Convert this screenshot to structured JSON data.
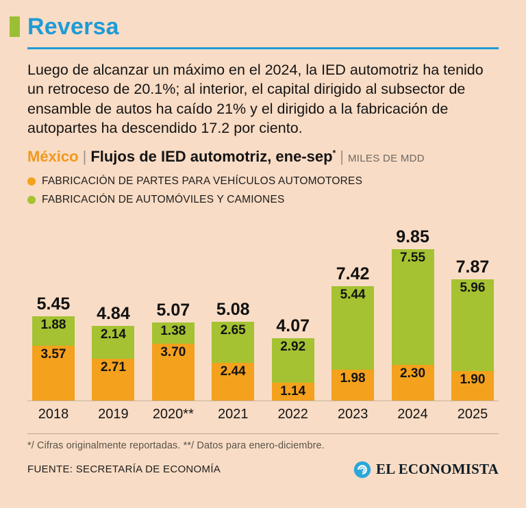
{
  "colors": {
    "background": "#f9dcc5",
    "accent_blue": "#1e9bd7",
    "accent_green_square": "#9bbf34",
    "bar_orange": "#f4a11d",
    "bar_green": "#a4c232"
  },
  "header": {
    "title": "Reversa"
  },
  "intro": "Luego de alcanzar un máximo en el 2024, la IED automotriz ha tenido un retroceso de 20.1%; al interior, el capital dirigido al subsector de ensamble de autos ha caído 21% y el dirigido a la fabricación de autopartes ha descendido 17.2 por ciento.",
  "subtitle": {
    "country": "México",
    "sep": "|",
    "main": "Flujos de IED automotriz, ene-sep",
    "asterisk": "*",
    "units": "MILES DE MDD"
  },
  "legend": [
    {
      "label": "FABRICACIÓN DE PARTES PARA VEHÍCULOS AUTOMOTORES",
      "color": "#f4a11d"
    },
    {
      "label": "FABRICACIÓN DE AUTOMÓVILES Y CAMIONES",
      "color": "#a4c232"
    }
  ],
  "chart_data": {
    "type": "bar",
    "stacked": true,
    "title": "México | Flujos de IED automotriz, ene-sep (MILES DE MDD)",
    "categories": [
      "2018",
      "2019",
      "2020**",
      "2021",
      "2022",
      "2023",
      "2024",
      "2025"
    ],
    "series": [
      {
        "name": "FABRICACIÓN DE PARTES PARA VEHÍCULOS AUTOMOTORES",
        "key": "autopartes",
        "color": "#f4a11d",
        "values": [
          3.57,
          2.71,
          3.7,
          2.44,
          1.14,
          1.98,
          2.3,
          1.9
        ]
      },
      {
        "name": "FABRICACIÓN DE AUTOMÓVILES Y CAMIONES",
        "key": "automoviles",
        "color": "#a4c232",
        "values": [
          1.88,
          2.14,
          1.38,
          2.65,
          2.92,
          5.44,
          7.55,
          5.96
        ]
      }
    ],
    "totals": [
      5.45,
      4.84,
      5.07,
      5.08,
      4.07,
      7.42,
      9.85,
      7.87
    ],
    "ylim": [
      0,
      10
    ],
    "grid": false,
    "legend_position": "top-left"
  },
  "footnotes": "*/ Cifras originalmente reportadas. **/ Datos para enero-diciembre.",
  "source": "FUENTE: SECRETARÍA DE ECONOMÍA",
  "brand": "EL ECONOMISTA"
}
